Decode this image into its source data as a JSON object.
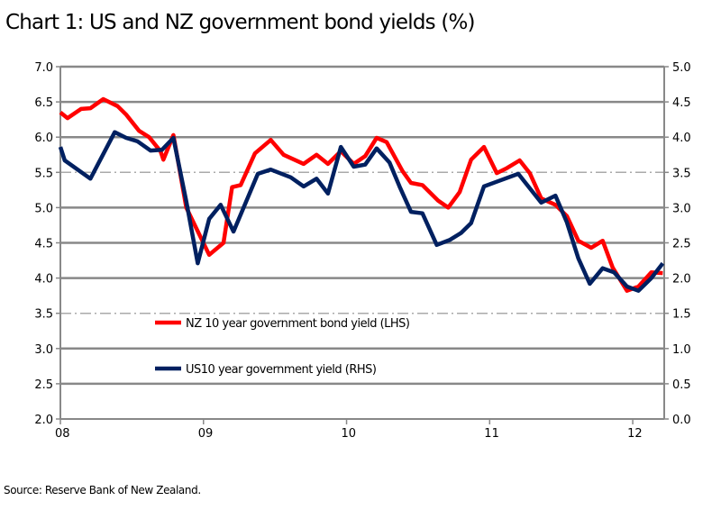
{
  "chart_data": {
    "type": "line",
    "title": "Chart 1: US and NZ government bond yields (%)",
    "source": "Source:  Reserve Bank of New Zealand.",
    "x_ticks": [
      {
        "value": 2008,
        "label": "08"
      },
      {
        "value": 2009,
        "label": "09"
      },
      {
        "value": 2010,
        "label": "10"
      },
      {
        "value": 2011,
        "label": "11"
      },
      {
        "value": 2012,
        "label": "12"
      }
    ],
    "xlim": [
      2008,
      2012.22
    ],
    "ylim_left": [
      2.0,
      7.0
    ],
    "ylim_right": [
      0.0,
      5.0
    ],
    "y_ticks_left": [
      "2.0",
      "2.5",
      "3.0",
      "3.5",
      "4.0",
      "4.5",
      "5.0",
      "5.5",
      "6.0",
      "6.5",
      "7.0"
    ],
    "y_ticks_right": [
      "0.0",
      "0.5",
      "1.0",
      "1.5",
      "2.0",
      "2.5",
      "3.0",
      "3.5",
      "4.0",
      "4.5",
      "5.0"
    ],
    "grid": true,
    "legend_placement": "lower-center",
    "series": [
      {
        "name": "NZ 10 year government bond yield (LHS)",
        "axis": "left",
        "color": "#ff0000",
        "x": [
          2008.0,
          2008.05,
          2008.145,
          2008.21,
          2008.3,
          2008.4,
          2008.46,
          2008.55,
          2008.62,
          2008.7,
          2008.72,
          2008.79,
          2008.88,
          2009.04,
          2009.14,
          2009.2,
          2009.26,
          2009.36,
          2009.47,
          2009.56,
          2009.7,
          2009.79,
          2009.87,
          2009.96,
          2010.05,
          2010.13,
          2010.21,
          2010.28,
          2010.39,
          2010.45,
          2010.53,
          2010.64,
          2010.71,
          2010.79,
          2010.87,
          2010.96,
          2011.05,
          2011.12,
          2011.21,
          2011.28,
          2011.36,
          2011.46,
          2011.54,
          2011.62,
          2011.71,
          2011.79,
          2011.86,
          2011.96,
          2012.04,
          2012.13,
          2012.21
        ],
        "y": [
          6.35,
          6.27,
          6.4,
          6.41,
          6.54,
          6.44,
          6.32,
          6.09,
          6.0,
          5.8,
          5.68,
          6.03,
          5.0,
          4.33,
          4.5,
          5.29,
          5.32,
          5.77,
          5.96,
          5.75,
          5.62,
          5.75,
          5.62,
          5.8,
          5.62,
          5.73,
          5.99,
          5.93,
          5.52,
          5.35,
          5.32,
          5.1,
          5.0,
          5.22,
          5.68,
          5.86,
          5.49,
          5.56,
          5.67,
          5.49,
          5.13,
          5.04,
          4.88,
          4.53,
          4.43,
          4.53,
          4.15,
          3.82,
          3.88,
          4.08,
          4.07
        ]
      },
      {
        "name": "US10 year government yield (RHS)",
        "axis": "right",
        "color": "#002060",
        "x": [
          2008.0,
          2008.03,
          2008.21,
          2008.38,
          2008.46,
          2008.54,
          2008.63,
          2008.71,
          2008.79,
          2008.88,
          2008.96,
          2009.04,
          2009.12,
          2009.21,
          2009.38,
          2009.47,
          2009.61,
          2009.7,
          2009.79,
          2009.87,
          2009.96,
          2010.05,
          2010.13,
          2010.21,
          2010.3,
          2010.37,
          2010.45,
          2010.53,
          2010.63,
          2010.72,
          2010.8,
          2010.87,
          2010.96,
          2011.04,
          2011.2,
          2011.27,
          2011.36,
          2011.46,
          2011.54,
          2011.62,
          2011.7,
          2011.79,
          2011.87,
          2011.96,
          2012.04,
          2012.13,
          2012.21
        ],
        "y": [
          3.86,
          3.67,
          3.41,
          4.07,
          3.99,
          3.94,
          3.81,
          3.82,
          3.99,
          3.09,
          2.21,
          2.84,
          3.04,
          2.66,
          3.48,
          3.54,
          3.43,
          3.3,
          3.41,
          3.2,
          3.86,
          3.58,
          3.61,
          3.84,
          3.64,
          3.3,
          2.94,
          2.92,
          2.47,
          2.54,
          2.64,
          2.78,
          3.3,
          3.36,
          3.48,
          3.3,
          3.07,
          3.17,
          2.79,
          2.28,
          1.92,
          2.14,
          2.08,
          1.88,
          1.82,
          2.0,
          2.21
        ]
      }
    ]
  }
}
